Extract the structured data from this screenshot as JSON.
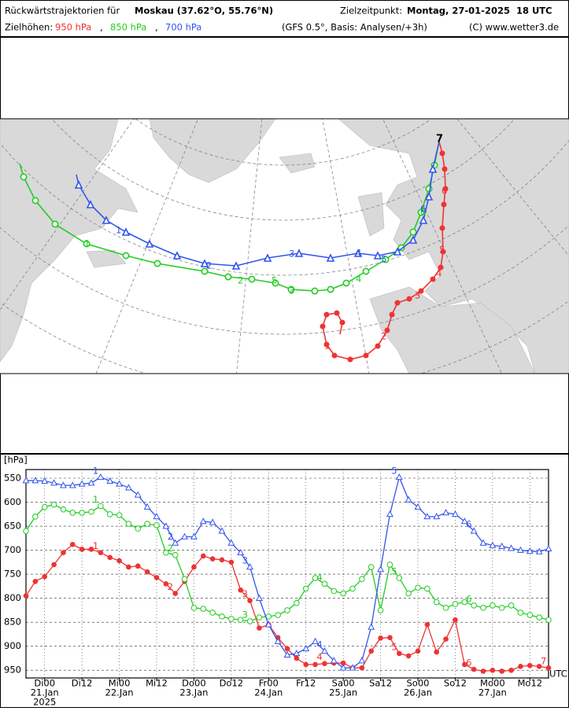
{
  "header": {
    "title": "Rückwärtstrajektorien für",
    "location": "Moskau (37.62°O, 55.76°N)",
    "target_label": "Zielzeitpunkt:",
    "target_time": "Montag, 27-01-2025  18 UTC",
    "levels_label": "Zielhöhen:",
    "separator": ",",
    "model": "(GFS 0.5°, Basis: Analysen/+3h)",
    "copyright": "(C) www.wetter3.de"
  },
  "map": {
    "end_label": "7",
    "red": [
      "1",
      "2",
      "3",
      "4",
      "5",
      "6"
    ],
    "green": [
      "1",
      "2",
      "3",
      "4",
      "5",
      "6"
    ],
    "blue": [
      "1",
      "2",
      "3",
      "4",
      "5",
      "6"
    ]
  },
  "chart_data": {
    "type": "line",
    "y_label": "[hPa]",
    "x_unit": "UTC",
    "year": "2025",
    "x": [
      -6,
      -3,
      0,
      3,
      6,
      9,
      12,
      15,
      18,
      21,
      24,
      27,
      30,
      33,
      36,
      39,
      42,
      45,
      48,
      51,
      54,
      57,
      60,
      63,
      66,
      69,
      72,
      75,
      78,
      81,
      84,
      87,
      90,
      93,
      96,
      99,
      102,
      105,
      108,
      111,
      114,
      117,
      120,
      123,
      126,
      129,
      132,
      135,
      138,
      141,
      144,
      147,
      150,
      153,
      156,
      159,
      162
    ],
    "xlim": [
      -6,
      162
    ],
    "xticks": [
      {
        "value": 0,
        "label": "Di00"
      },
      {
        "value": 12,
        "label": "Di12"
      },
      {
        "value": 24,
        "label": "Mi00"
      },
      {
        "value": 36,
        "label": "Mi12"
      },
      {
        "value": 48,
        "label": "Do00"
      },
      {
        "value": 60,
        "label": "Do12"
      },
      {
        "value": 72,
        "label": "Fr00"
      },
      {
        "value": 84,
        "label": "Fr12"
      },
      {
        "value": 96,
        "label": "Sa00"
      },
      {
        "value": 108,
        "label": "Sa12"
      },
      {
        "value": 120,
        "label": "So00"
      },
      {
        "value": 132,
        "label": "So12"
      },
      {
        "value": 144,
        "label": "Mo00"
      },
      {
        "value": 156,
        "label": "Mo12"
      }
    ],
    "xdates": [
      {
        "value": 0,
        "label": "21.Jan"
      },
      {
        "value": 24,
        "label": "22.Jan"
      },
      {
        "value": 48,
        "label": "23.Jan"
      },
      {
        "value": 72,
        "label": "24.Jan"
      },
      {
        "value": 96,
        "label": "25.Jan"
      },
      {
        "value": 120,
        "label": "26.Jan"
      },
      {
        "value": 144,
        "label": "27.Jan"
      }
    ],
    "ylim": [
      966,
      532
    ],
    "yticks": [
      550,
      600,
      650,
      700,
      750,
      800,
      850,
      900,
      950
    ],
    "grid": true,
    "series": [
      {
        "name": "950 hPa",
        "color": "#ee3333",
        "marker": "dot",
        "day_labels": [
          "1",
          "2",
          "3",
          "4",
          "5",
          "6",
          "7"
        ],
        "values": [
          795,
          765,
          755,
          730,
          705,
          688,
          698,
          698,
          705,
          715,
          722,
          735,
          733,
          745,
          757,
          770,
          790,
          765,
          735,
          712,
          718,
          720,
          725,
          783,
          805,
          862,
          855,
          882,
          905,
          925,
          938,
          938,
          936,
          935,
          935,
          945,
          945,
          910,
          883,
          882,
          915,
          920,
          910,
          855,
          912,
          885,
          845,
          938,
          948,
          952,
          950,
          952,
          950,
          942,
          940,
          942,
          945
        ]
      },
      {
        "name": "850 hPa",
        "color": "#22cc22",
        "marker": "circle",
        "day_labels": [
          "1",
          "2",
          "3",
          "4",
          "5",
          "6"
        ],
        "values": [
          660,
          630,
          610,
          605,
          615,
          622,
          622,
          620,
          608,
          625,
          627,
          645,
          655,
          645,
          648,
          705,
          710,
          760,
          820,
          822,
          830,
          838,
          843,
          845,
          848,
          840,
          838,
          835,
          825,
          810,
          780,
          758,
          770,
          785,
          790,
          780,
          760,
          735,
          825,
          730,
          758,
          790,
          778,
          780,
          808,
          820,
          812,
          808,
          815,
          820,
          815,
          820,
          815,
          830,
          835,
          840,
          845
        ]
      },
      {
        "name": "700 hPa",
        "color": "#3355ee",
        "marker": "triangle",
        "day_labels": [
          "1",
          "2",
          "3",
          "4",
          "5",
          "6"
        ],
        "values": [
          555,
          555,
          556,
          560,
          565,
          565,
          562,
          560,
          548,
          556,
          562,
          570,
          585,
          610,
          630,
          650,
          685,
          672,
          672,
          640,
          642,
          660,
          685,
          705,
          735,
          800,
          855,
          890,
          918,
          915,
          905,
          890,
          910,
          930,
          945,
          945,
          930,
          860,
          740,
          625,
          548,
          595,
          610,
          630,
          630,
          622,
          625,
          640,
          660,
          685,
          690,
          692,
          696,
          700,
          702,
          703,
          697
        ]
      }
    ]
  }
}
